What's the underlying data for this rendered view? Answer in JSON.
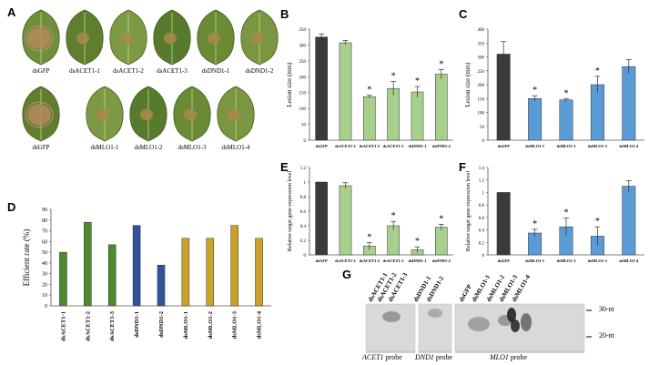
{
  "panels": {
    "A": "A",
    "B": "B",
    "C": "C",
    "D": "D",
    "E": "E",
    "F": "F",
    "G": "G"
  },
  "leaves": {
    "row1": [
      "dsGFP",
      "dsACET1-1",
      "dsACET1-2",
      "dsACET1-3",
      "dsDND1-1",
      "dsDND1-2"
    ],
    "row2": [
      "dsGFP",
      "dsMLO1-1",
      "dsMLO1-2",
      "dsMLO1-3",
      "dsMLO1-4"
    ]
  },
  "chart_data": [
    {
      "id": "B",
      "type": "bar",
      "categories": [
        "dsGFP",
        "dsACET1-1",
        "dsACET1-2",
        "dsACET1-3",
        "dsDND1-1",
        "dsDND1-2"
      ],
      "values": [
        325,
        307,
        137,
        163,
        152,
        208
      ],
      "errors": [
        10,
        7,
        5,
        22,
        17,
        15
      ],
      "significant": [
        false,
        false,
        true,
        true,
        true,
        true
      ],
      "ylabel": "Lesion size (mm)",
      "ylim": [
        0,
        350
      ],
      "yticks": [
        "0",
        "50",
        "100",
        "150",
        "200",
        "250",
        "300",
        "350"
      ],
      "colors": [
        "#3a3a3a",
        "#a8d08d",
        "#a8d08d",
        "#a8d08d",
        "#a8d08d",
        "#a8d08d"
      ]
    },
    {
      "id": "C",
      "type": "bar",
      "categories": [
        "dsGFP",
        "dsMLO1-1",
        "dsMLO1-2",
        "dsMLO1-3",
        "dsMLO1-4"
      ],
      "values": [
        310,
        150,
        145,
        200,
        265
      ],
      "errors": [
        45,
        10,
        5,
        30,
        25
      ],
      "significant": [
        false,
        true,
        true,
        true,
        false
      ],
      "ylabel": "Lesion size (mm)",
      "ylim": [
        0,
        400
      ],
      "yticks": [
        "0",
        "50",
        "100",
        "150",
        "200",
        "250",
        "300",
        "350",
        "400"
      ],
      "colors": [
        "#3a3a3a",
        "#5b9bd5",
        "#5b9bd5",
        "#5b9bd5",
        "#5b9bd5"
      ]
    },
    {
      "id": "D",
      "type": "bar",
      "categories": [
        "dsACET1-1",
        "dsACET1-2",
        "dsACET1-3",
        "dsDND1-1",
        "dsDND1-2",
        "dsMLO1-1",
        "dsMLO1-2",
        "dsMLO1-3",
        "dsMLO1-4"
      ],
      "values": [
        50,
        78,
        57,
        75,
        38,
        63,
        63,
        75,
        63
      ],
      "ylabel": "Efficient rate (%)",
      "ylim": [
        0,
        90
      ],
      "yticks": [
        "0",
        "10",
        "20",
        "30",
        "40",
        "50",
        "60",
        "70",
        "80",
        "90"
      ],
      "colors": [
        "#4e8a2e",
        "#4e8a2e",
        "#4e8a2e",
        "#2f5597",
        "#2f5597",
        "#c9a227",
        "#c9a227",
        "#c9a227",
        "#c9a227"
      ]
    },
    {
      "id": "E",
      "type": "bar",
      "categories": [
        "dsGFP",
        "dsACET1-1",
        "dsACET1-2",
        "dsACET1-3",
        "dsDND1-1",
        "dsDND1-2"
      ],
      "values": [
        1.0,
        0.95,
        0.12,
        0.4,
        0.07,
        0.38
      ],
      "errors": [
        0.0,
        0.04,
        0.05,
        0.06,
        0.04,
        0.04
      ],
      "significant": [
        false,
        false,
        true,
        true,
        true,
        true
      ],
      "ylabel": "Relative target gene expression level",
      "ylim": [
        0,
        1.2
      ],
      "yticks": [
        "0",
        "0.2",
        "0.4",
        "0.6",
        "0.8",
        "1",
        "1.2"
      ],
      "colors": [
        "#3a3a3a",
        "#a8d08d",
        "#a8d08d",
        "#a8d08d",
        "#a8d08d",
        "#a8d08d"
      ]
    },
    {
      "id": "F",
      "type": "bar",
      "categories": [
        "dsGFP",
        "dsMLO1-1",
        "dsMLO1-2",
        "dsMLO1-3",
        "dsMLO1-4"
      ],
      "values": [
        1.0,
        0.35,
        0.45,
        0.3,
        1.1
      ],
      "errors": [
        0.0,
        0.06,
        0.14,
        0.15,
        0.09
      ],
      "significant": [
        false,
        true,
        true,
        true,
        false
      ],
      "ylabel": "Relative target gene expression level",
      "ylim": [
        0,
        1.4
      ],
      "yticks": [
        "0",
        "0.2",
        "0.4",
        "0.6",
        "0.8",
        "1",
        "1.2",
        "1.4"
      ],
      "colors": [
        "#3a3a3a",
        "#5b9bd5",
        "#5b9bd5",
        "#5b9bd5",
        "#5b9bd5"
      ]
    }
  ],
  "blot": {
    "lanes": [
      "dsACET1-1",
      "dsACET1-2",
      "dsACET1-3",
      "dsDND1-1",
      "dsDND1-2",
      "dsGFP",
      "dsMLO1-1",
      "dsMLO1-2",
      "dsMLO1-3",
      "dsMLO1-4"
    ],
    "markers": [
      "30-nt",
      "20-nt"
    ],
    "probes": {
      "acet": "ACET1",
      "dnd": "DND1",
      "mlo": "MLO1",
      "suffix": " probe"
    }
  },
  "significance_mark": "*"
}
